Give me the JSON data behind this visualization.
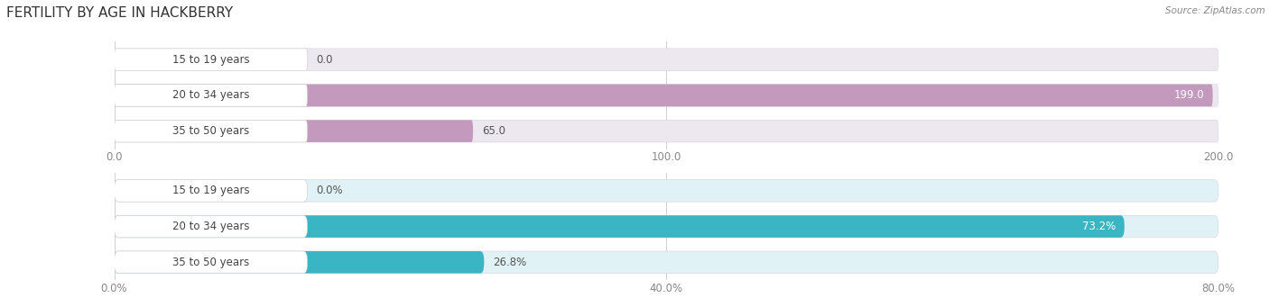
{
  "title": "FERTILITY BY AGE IN HACKBERRY",
  "source": "Source: ZipAtlas.com",
  "top_chart": {
    "categories": [
      "15 to 19 years",
      "20 to 34 years",
      "35 to 50 years"
    ],
    "values": [
      0.0,
      199.0,
      65.0
    ],
    "xlim": [
      0,
      200.0
    ],
    "xticks": [
      0.0,
      100.0,
      200.0
    ],
    "bar_color": "#c39abe",
    "bg_color": "#ede8f0",
    "label_color": "#555555"
  },
  "bottom_chart": {
    "categories": [
      "15 to 19 years",
      "20 to 34 years",
      "35 to 50 years"
    ],
    "values": [
      0.0,
      73.2,
      26.8
    ],
    "xlim": [
      0,
      80.0
    ],
    "xticks": [
      0.0,
      40.0,
      80.0
    ],
    "xtick_labels": [
      "0.0%",
      "40.0%",
      "80.0%"
    ],
    "bar_color": "#3ab5c3",
    "bg_color": "#e0f2f5",
    "label_color": "#555555"
  },
  "fig_bg": "#ffffff",
  "title_fontsize": 11,
  "label_fontsize": 8.5,
  "value_fontsize": 8.5,
  "bar_height": 0.62,
  "source_fontsize": 7.5
}
